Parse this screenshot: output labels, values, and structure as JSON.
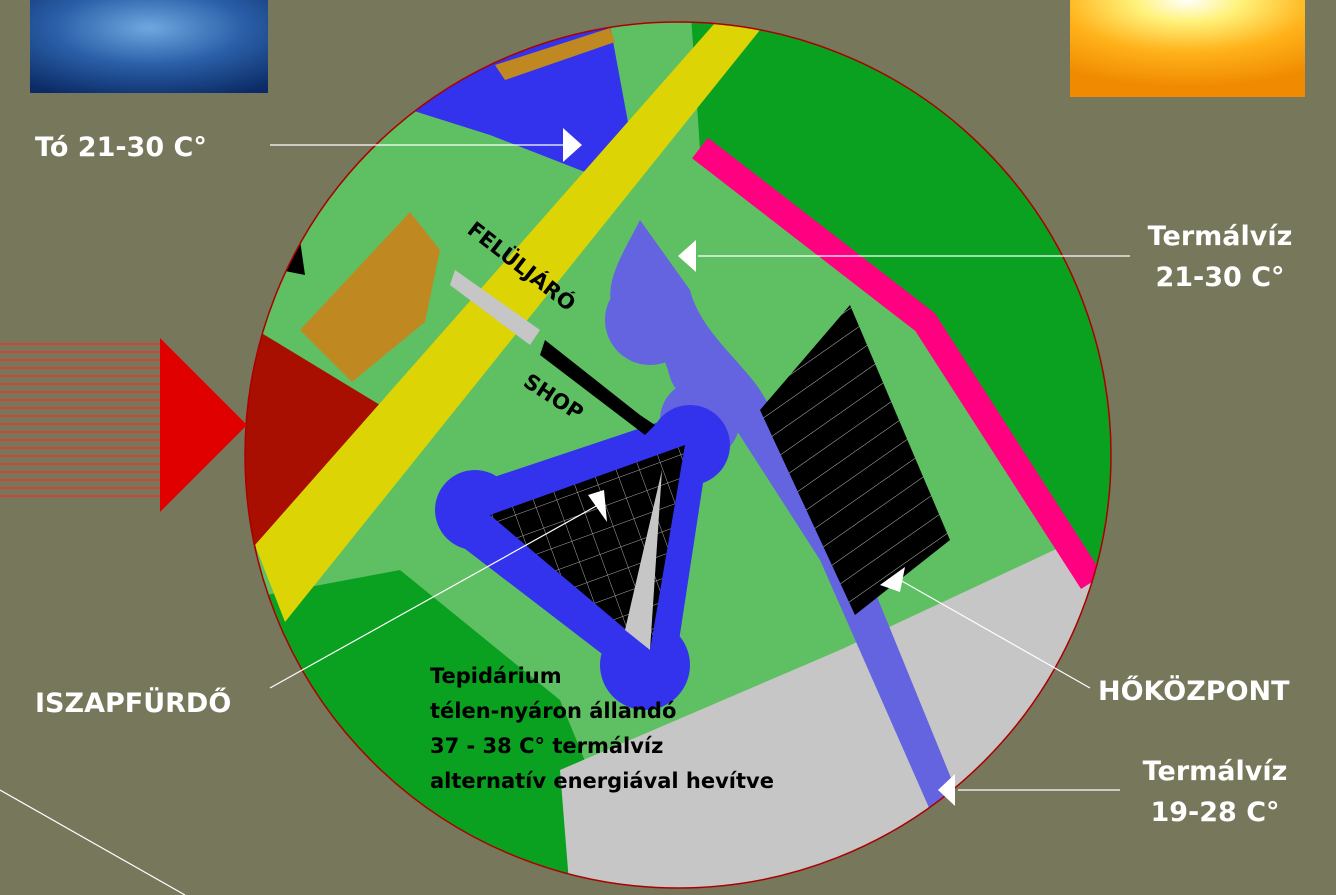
{
  "labels": {
    "lake": "Tó 21-30 C°",
    "thermal_upper": [
      "Termálvíz",
      "21-30 C°"
    ],
    "overpass": "FELÜLJÁRÓ",
    "shop": "SHOP",
    "mud_bath": "ISZAPFÜRDŐ",
    "heat_center": "HŐKÖZPONT",
    "thermal_lower": [
      "Termálvíz",
      "19-28 C°"
    ],
    "tepidarium": [
      "Tepidárium",
      "télen-nyáron állandó",
      "37 - 38 C° termálvíz",
      "alternatív energiával hevítve"
    ]
  }
}
